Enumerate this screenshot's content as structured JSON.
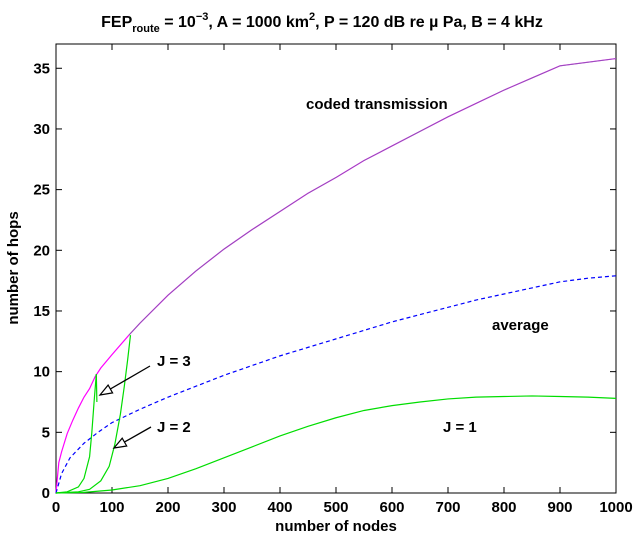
{
  "chart_data": {
    "type": "line",
    "title": {
      "prefix": "FEP",
      "subscript": "route",
      "eq": " = 10",
      "exponent": "−3",
      "area": ", A = 1000 km",
      "area_exp": "2",
      "rest": ", P = 120 dB re µ Pa, B = 4 kHz"
    },
    "xlabel": "number of nodes",
    "ylabel": "number of hops",
    "xlim": [
      0,
      1000
    ],
    "ylim": [
      0,
      37
    ],
    "xticks": [
      0,
      100,
      200,
      300,
      400,
      500,
      600,
      700,
      800,
      900,
      1000
    ],
    "yticks": [
      0,
      5,
      10,
      15,
      20,
      25,
      30,
      35
    ],
    "grid": false,
    "colors": {
      "coded": "#ff00ff",
      "coded_overlay": "#6f6fa0",
      "average": "#0000ff",
      "J": "#00dd00"
    },
    "series": [
      {
        "key": "coded",
        "style": "solid",
        "x": [
          0,
          5,
          10,
          20,
          30,
          40,
          50,
          60,
          70,
          80,
          100,
          130,
          150,
          200,
          250,
          300,
          350,
          400,
          450,
          500,
          550,
          600,
          650,
          700,
          750,
          800,
          850,
          900,
          950,
          1000
        ],
        "y": [
          0,
          2.5,
          3.4,
          4.9,
          6.0,
          7.0,
          7.9,
          8.6,
          9.6,
          10.3,
          11.4,
          13.0,
          14.0,
          16.3,
          18.3,
          20.1,
          21.7,
          23.2,
          24.7,
          26.0,
          27.4,
          28.6,
          29.8,
          31.0,
          32.1,
          33.2,
          34.2,
          35.2,
          35.5,
          35.8
        ]
      },
      {
        "key": "average",
        "style": "dashed",
        "x": [
          0,
          10,
          25,
          50,
          75,
          100,
          150,
          200,
          250,
          300,
          350,
          400,
          450,
          500,
          550,
          600,
          650,
          700,
          750,
          800,
          850,
          900,
          950,
          1000
        ],
        "y": [
          0,
          1.6,
          2.9,
          4.1,
          5.0,
          5.8,
          6.9,
          7.9,
          8.8,
          9.7,
          10.5,
          11.3,
          12.0,
          12.7,
          13.4,
          14.1,
          14.7,
          15.3,
          15.9,
          16.4,
          16.9,
          17.4,
          17.7,
          17.9
        ]
      },
      {
        "key": "J",
        "style": "solid",
        "x": [
          0,
          20,
          40,
          50,
          60,
          64,
          68,
          72
        ],
        "y": [
          0,
          0.1,
          0.5,
          1.2,
          3.0,
          5.0,
          7.5,
          9.8
        ]
      },
      {
        "key": "J",
        "style": "solid",
        "x": [
          72,
          73
        ],
        "y": [
          9.8,
          7.5
        ]
      },
      {
        "key": "J",
        "style": "solid",
        "x": [
          0,
          40,
          60,
          80,
          95,
          105,
          115,
          122,
          128,
          133
        ],
        "y": [
          0,
          0.1,
          0.3,
          1.0,
          2.2,
          4.0,
          6.5,
          8.8,
          11.0,
          13.0
        ]
      },
      {
        "key": "J",
        "style": "solid",
        "x": [
          0,
          50,
          100,
          150,
          200,
          250,
          300,
          350,
          400,
          450,
          500,
          550,
          600,
          650,
          700,
          750,
          800,
          850,
          900,
          950,
          1000
        ],
        "y": [
          0,
          0.05,
          0.25,
          0.6,
          1.2,
          2.0,
          2.9,
          3.8,
          4.7,
          5.5,
          6.2,
          6.8,
          7.2,
          7.5,
          7.75,
          7.9,
          7.95,
          8.0,
          7.95,
          7.9,
          7.8
        ]
      }
    ],
    "annotations": {
      "coded": "coded transmission",
      "average": "average",
      "j1": "J = 1",
      "j2": "J = 2",
      "j3": "J = 3"
    }
  }
}
